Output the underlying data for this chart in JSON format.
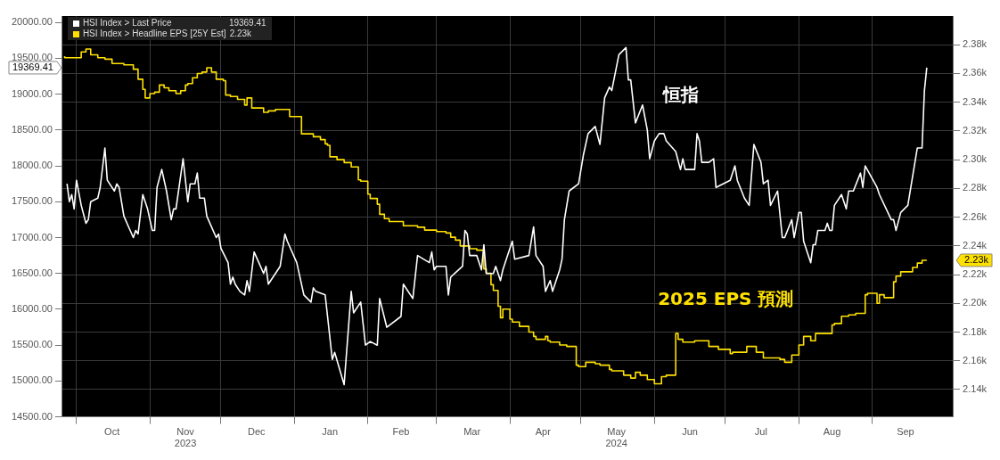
{
  "chart_data": {
    "type": "line",
    "xlim": [
      "2023-09-25",
      "2024-10-05"
    ],
    "xticks": [
      {
        "value": "2023-10-01",
        "label": null
      },
      {
        "value": "2023-10-16",
        "label": "Oct"
      },
      {
        "value": "2023-11-01",
        "label": null
      },
      {
        "value": "2023-11-16",
        "label": "Nov\n2023"
      },
      {
        "value": "2023-12-01",
        "label": null
      },
      {
        "value": "2023-12-16",
        "label": "Dec"
      },
      {
        "value": "2024-01-01",
        "label": null
      },
      {
        "value": "2024-01-16",
        "label": "Jan"
      },
      {
        "value": "2024-02-01",
        "label": null
      },
      {
        "value": "2024-02-15",
        "label": "Feb"
      },
      {
        "value": "2024-03-01",
        "label": null
      },
      {
        "value": "2024-03-16",
        "label": "Mar"
      },
      {
        "value": "2024-04-01",
        "label": null
      },
      {
        "value": "2024-04-15",
        "label": "Apr"
      },
      {
        "value": "2024-05-01",
        "label": null
      },
      {
        "value": "2024-05-16",
        "label": "May\n2024"
      },
      {
        "value": "2024-06-01",
        "label": null
      },
      {
        "value": "2024-06-16",
        "label": "Jun"
      },
      {
        "value": "2024-07-01",
        "label": null
      },
      {
        "value": "2024-07-16",
        "label": "Jul"
      },
      {
        "value": "2024-08-01",
        "label": null
      },
      {
        "value": "2024-08-15",
        "label": "Aug"
      },
      {
        "value": "2024-09-01",
        "label": null
      },
      {
        "value": "2024-09-15",
        "label": "Sep"
      }
    ],
    "ylim": [
      14500,
      20090
    ],
    "yticks": [
      {
        "value": 14500,
        "label": "14500.00"
      },
      {
        "value": 15000,
        "label": "15000.00"
      },
      {
        "value": 15500,
        "label": "15500.00"
      },
      {
        "value": 16000,
        "label": "16000.00"
      },
      {
        "value": 16500,
        "label": "16500.00"
      },
      {
        "value": 17000,
        "label": "17000.00"
      },
      {
        "value": 17500,
        "label": "17500.00"
      },
      {
        "value": 18000,
        "label": "18000.00"
      },
      {
        "value": 18500,
        "label": "18500.00"
      },
      {
        "value": 19000,
        "label": "19000.00"
      },
      {
        "value": 19500,
        "label": "19500.00"
      },
      {
        "value": 20000,
        "label": "20000.00"
      },
      {
        "value": 19369.41,
        "label": "19369.41"
      }
    ],
    "y2lim": [
      2121,
      2400
    ],
    "y2ticks": [
      {
        "value": 2140,
        "label": "2.14k"
      },
      {
        "value": 2160,
        "label": "2.16k"
      },
      {
        "value": 2180,
        "label": "2.18k"
      },
      {
        "value": 2200,
        "label": "2.20k"
      },
      {
        "value": 2220,
        "label": "2.22k"
      },
      {
        "value": 2240,
        "label": "2.24k"
      },
      {
        "value": 2260,
        "label": "2.26k"
      },
      {
        "value": 2280,
        "label": "2.28k"
      },
      {
        "value": 2300,
        "label": "2.30k"
      },
      {
        "value": 2320,
        "label": "2.32k"
      },
      {
        "value": 2340,
        "label": "2.34k"
      },
      {
        "value": 2360,
        "label": "2.36k"
      },
      {
        "value": 2380,
        "label": "2.38k"
      },
      {
        "value": 2230,
        "label": "2.23k"
      }
    ],
    "grid": true,
    "legend": "top left",
    "annotations": [
      "恒指",
      "2025 EPS 預測"
    ],
    "series": [
      {
        "name": "HSI Index > Last Price",
        "type": "line",
        "color": "#ffffff",
        "x": [
          "2023-09-27",
          "2023-09-28",
          "2023-09-29",
          "2023-09-30",
          "2023-10-01",
          "2023-10-03",
          "2023-10-05",
          "2023-10-06",
          "2023-10-07",
          "2023-10-10",
          "2023-10-11",
          "2023-10-13",
          "2023-10-14",
          "2023-10-17",
          "2023-10-18",
          "2023-10-19",
          "2023-10-21",
          "2023-10-23",
          "2023-10-25",
          "2023-10-26",
          "2023-10-27",
          "2023-10-29",
          "2023-10-31",
          "2023-11-02",
          "2023-11-03",
          "2023-11-04",
          "2023-11-06",
          "2023-11-08",
          "2023-11-10",
          "2023-11-11",
          "2023-11-12",
          "2023-11-15",
          "2023-11-17",
          "2023-11-18",
          "2023-11-20",
          "2023-11-21",
          "2023-11-22",
          "2023-11-24",
          "2023-11-25",
          "2023-11-29",
          "2023-11-30",
          "2023-12-01",
          "2023-12-04",
          "2023-12-05",
          "2023-12-06",
          "2023-12-07",
          "2023-12-09",
          "2023-12-11",
          "2023-12-12",
          "2023-12-13",
          "2023-12-15",
          "2023-12-17",
          "2023-12-19",
          "2023-12-20",
          "2023-12-21",
          "2023-12-26",
          "2023-12-28",
          "2023-12-29",
          "2024-01-02",
          "2024-01-05",
          "2024-01-08",
          "2024-01-09",
          "2024-01-10",
          "2024-01-14",
          "2024-01-17",
          "2024-01-18",
          "2024-01-22",
          "2024-01-25",
          "2024-01-26",
          "2024-01-29",
          "2024-01-31",
          "2024-02-02",
          "2024-02-05",
          "2024-02-06",
          "2024-02-09",
          "2024-02-15",
          "2024-02-16",
          "2024-02-20",
          "2024-02-22",
          "2024-02-27",
          "2024-02-28",
          "2024-02-29",
          "2024-03-01",
          "2024-03-05",
          "2024-03-06",
          "2024-03-07",
          "2024-03-12",
          "2024-03-13",
          "2024-03-14",
          "2024-03-15",
          "2024-03-18",
          "2024-03-20",
          "2024-03-21",
          "2024-03-22",
          "2024-03-25",
          "2024-03-26",
          "2024-03-28",
          "2024-03-29",
          "2024-04-02",
          "2024-04-03",
          "2024-04-09",
          "2024-04-11",
          "2024-04-12",
          "2024-04-15",
          "2024-04-16",
          "2024-04-18",
          "2024-04-19",
          "2024-04-22",
          "2024-04-23",
          "2024-04-24",
          "2024-04-26",
          "2024-04-30",
          "2024-05-02",
          "2024-05-04",
          "2024-05-07",
          "2024-05-09",
          "2024-05-11",
          "2024-05-13",
          "2024-05-14",
          "2024-05-17",
          "2024-05-20",
          "2024-05-21",
          "2024-05-22",
          "2024-05-24",
          "2024-05-27",
          "2024-05-29",
          "2024-05-30",
          "2024-06-01",
          "2024-06-03",
          "2024-06-05",
          "2024-06-06",
          "2024-06-10",
          "2024-06-12",
          "2024-06-13",
          "2024-06-14",
          "2024-06-18",
          "2024-06-19",
          "2024-06-20",
          "2024-06-21",
          "2024-06-24",
          "2024-06-26",
          "2024-06-27",
          "2024-07-03",
          "2024-07-05",
          "2024-07-06",
          "2024-07-09",
          "2024-07-11",
          "2024-07-13",
          "2024-07-16",
          "2024-07-17",
          "2024-07-19",
          "2024-07-20",
          "2024-07-23",
          "2024-07-25",
          "2024-07-26",
          "2024-07-29",
          "2024-07-30",
          "2024-08-01",
          "2024-08-02",
          "2024-08-03",
          "2024-08-06",
          "2024-08-07",
          "2024-08-08",
          "2024-08-09",
          "2024-08-12",
          "2024-08-13",
          "2024-08-14",
          "2024-08-15",
          "2024-08-16",
          "2024-08-19",
          "2024-08-21",
          "2024-08-22",
          "2024-08-24",
          "2024-08-27",
          "2024-08-28",
          "2024-08-29",
          "2024-09-03",
          "2024-09-04",
          "2024-09-09",
          "2024-09-10",
          "2024-09-11",
          "2024-09-13",
          "2024-09-16",
          "2024-09-20",
          "2024-09-22",
          "2024-09-23",
          "2024-09-24"
        ],
        "values": [
          17750,
          17500,
          17600,
          17400,
          17800,
          17450,
          17200,
          17250,
          17500,
          17550,
          17700,
          18250,
          17800,
          17650,
          17750,
          17700,
          17300,
          17150,
          17000,
          17100,
          17050,
          17600,
          17400,
          17100,
          17100,
          17700,
          17950,
          17650,
          17250,
          17400,
          17400,
          18100,
          17500,
          17750,
          17750,
          17900,
          17550,
          17550,
          17300,
          17000,
          17050,
          16850,
          16650,
          16350,
          16450,
          16350,
          16250,
          16200,
          16400,
          16250,
          16800,
          16650,
          16500,
          16600,
          16350,
          16600,
          17050,
          16950,
          16650,
          16200,
          16100,
          16300,
          16250,
          16200,
          15300,
          15400,
          14950,
          16250,
          15950,
          16100,
          15500,
          15550,
          15500,
          16150,
          15750,
          15900,
          16350,
          16150,
          16750,
          16650,
          16800,
          16550,
          16600,
          16600,
          16200,
          16450,
          16600,
          17100,
          17050,
          16750,
          16750,
          16550,
          16900,
          16500,
          16500,
          16600,
          16400,
          16550,
          16950,
          16700,
          16750,
          17150,
          16750,
          16600,
          16250,
          16400,
          16250,
          16550,
          16700,
          17250,
          17650,
          17750,
          18150,
          18450,
          18550,
          18300,
          18950,
          19100,
          19050,
          19550,
          19650,
          19200,
          19200,
          18600,
          18850,
          18500,
          18100,
          18350,
          18450,
          18450,
          18350,
          18200,
          17950,
          18100,
          17950,
          17950,
          18450,
          18350,
          18050,
          18050,
          18100,
          17700,
          17800,
          18000,
          17800,
          17550,
          17450,
          18300,
          18050,
          17750,
          17800,
          17450,
          17650,
          17000,
          17000,
          17250,
          17000,
          17350,
          17350,
          16950,
          16650,
          16900,
          16900,
          17100,
          17100,
          17200,
          17100,
          17100,
          17450,
          17600,
          17400,
          17650,
          17650,
          17900,
          17700,
          18000,
          17700,
          17600,
          17250,
          17250,
          17100,
          17350,
          17450,
          18250,
          18250,
          19050,
          19369.41
        ]
      },
      {
        "name": "HSI Index > Headline EPS [25Y Est]",
        "type": "step",
        "axis": "y2",
        "color": "#ffe100",
        "x": [
          "2023-09-26",
          "2023-10-03",
          "2023-10-05",
          "2023-10-07",
          "2023-10-10",
          "2023-10-13",
          "2023-10-16",
          "2023-10-21",
          "2023-10-25",
          "2023-10-27",
          "2023-10-29",
          "2023-10-30",
          "2023-11-01",
          "2023-11-03",
          "2023-11-05",
          "2023-11-07",
          "2023-11-09",
          "2023-11-12",
          "2023-11-14",
          "2023-11-16",
          "2023-11-17",
          "2023-11-19",
          "2023-11-21",
          "2023-11-23",
          "2023-11-25",
          "2023-11-27",
          "2023-11-29",
          "2023-12-02",
          "2023-12-03",
          "2023-12-05",
          "2023-12-08",
          "2023-12-11",
          "2023-12-12",
          "2023-12-14",
          "2023-12-19",
          "2023-12-21",
          "2023-12-24",
          "2023-12-30",
          "2024-01-04",
          "2024-01-09",
          "2024-01-12",
          "2024-01-14",
          "2024-01-15",
          "2024-01-16",
          "2024-01-19",
          "2024-01-22",
          "2024-01-25",
          "2024-01-28",
          "2024-01-29",
          "2024-02-01",
          "2024-02-02",
          "2024-02-05",
          "2024-02-06",
          "2024-02-08",
          "2024-02-10",
          "2024-02-16",
          "2024-02-22",
          "2024-02-25",
          "2024-03-01",
          "2024-03-05",
          "2024-03-07",
          "2024-03-09",
          "2024-03-11",
          "2024-03-15",
          "2024-03-18",
          "2024-03-21",
          "2024-03-22",
          "2024-03-24",
          "2024-03-25",
          "2024-03-27",
          "2024-03-28",
          "2024-03-29",
          "2024-04-01",
          "2024-04-02",
          "2024-04-05",
          "2024-04-09",
          "2024-04-11",
          "2024-04-12",
          "2024-04-16",
          "2024-04-17",
          "2024-04-18",
          "2024-04-22",
          "2024-04-25",
          "2024-04-29",
          "2024-04-30",
          "2024-05-03",
          "2024-05-07",
          "2024-05-09",
          "2024-05-13",
          "2024-05-14",
          "2024-05-19",
          "2024-05-22",
          "2024-05-24",
          "2024-05-26",
          "2024-05-29",
          "2024-06-01",
          "2024-06-04",
          "2024-06-06",
          "2024-06-10",
          "2024-06-11",
          "2024-06-13",
          "2024-06-18",
          "2024-06-24",
          "2024-06-28",
          "2024-07-03",
          "2024-07-04",
          "2024-07-10",
          "2024-07-14",
          "2024-07-17",
          "2024-07-24",
          "2024-07-26",
          "2024-07-29",
          "2024-08-01",
          "2024-08-03",
          "2024-08-06",
          "2024-08-08",
          "2024-08-15",
          "2024-08-16",
          "2024-08-19",
          "2024-08-22",
          "2024-08-25",
          "2024-08-29",
          "2024-08-30",
          "2024-09-03",
          "2024-09-04",
          "2024-09-06",
          "2024-09-10",
          "2024-09-11",
          "2024-09-13",
          "2024-09-18",
          "2024-09-20",
          "2024-09-22",
          "2024-09-24"
        ],
        "values": [
          2372,
          2371,
          2375,
          2377,
          2373,
          2371,
          2370,
          2367,
          2366,
          2363,
          2356,
          2349,
          2343,
          2346,
          2347,
          2352,
          2350,
          2348,
          2346,
          2348,
          2352,
          2353,
          2357,
          2360,
          2361,
          2364,
          2361,
          2356,
          2355,
          2345,
          2344,
          2342,
          2338,
          2343,
          2336,
          2333,
          2334,
          2335,
          2330,
          2318,
          2316,
          2314,
          2311,
          2310,
          2302,
          2300,
          2298,
          2295,
          2286,
          2285,
          2276,
          2273,
          2269,
          2262,
          2259,
          2257,
          2254,
          2253,
          2251,
          2250,
          2249,
          2246,
          2244,
          2240,
          2238,
          2237,
          2224,
          2221,
          2213,
          2209,
          2198,
          2190,
          2196,
          2189,
          2187,
          2184,
          2180,
          2177,
          2175,
          2177,
          2174,
          2173,
          2171,
          2170,
          2157,
          2156,
          2159,
          2158,
          2157,
          2154,
          2153,
          2150,
          2148,
          2152,
          2150,
          2147,
          2144,
          2149,
          2150,
          2179,
          2175,
          2173,
          2174,
          2170,
          2168,
          2165,
          2166,
          2170,
          2166,
          2162,
          2161,
          2159,
          2164,
          2171,
          2177,
          2174,
          2179,
          2185,
          2186,
          2191,
          2192,
          2193,
          2206,
          2207,
          2200,
          2206,
          2204,
          2215,
          2219,
          2222,
          2225,
          2228,
          2230
        ]
      }
    ]
  }
}
